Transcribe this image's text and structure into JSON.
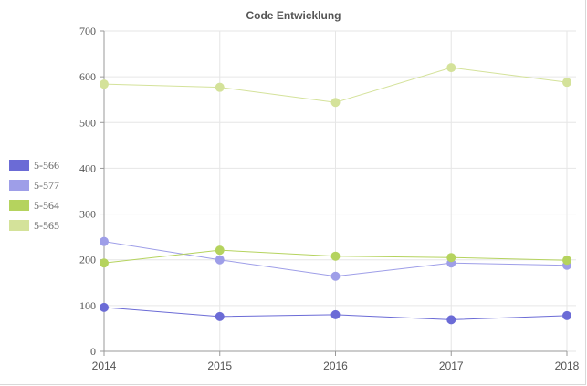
{
  "chart_data": {
    "type": "line",
    "title": "Code Entwicklung",
    "categories": [
      "2014",
      "2015",
      "2016",
      "2017",
      "2018"
    ],
    "yticks": [
      "0",
      "100",
      "200",
      "300",
      "400",
      "500",
      "600",
      "700"
    ],
    "ylim": [
      0,
      700
    ],
    "grid": true,
    "legend_position": "left",
    "series": [
      {
        "name": "5-566",
        "color": "#6b6bd6",
        "values": [
          96,
          76,
          80,
          69,
          78
        ]
      },
      {
        "name": "5-577",
        "color": "#9e9ee8",
        "values": [
          240,
          200,
          164,
          193,
          188
        ]
      },
      {
        "name": "5-564",
        "color": "#b5d35e",
        "values": [
          193,
          221,
          208,
          205,
          199
        ]
      },
      {
        "name": "5-565",
        "color": "#d4e29a",
        "values": [
          584,
          577,
          544,
          620,
          588
        ]
      }
    ]
  }
}
